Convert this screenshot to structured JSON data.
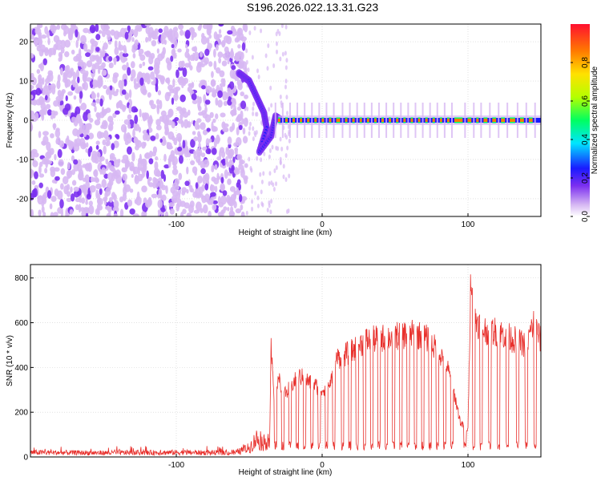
{
  "title": "S196.2026.022.13.31.G23",
  "chart_data": [
    {
      "type": "heatmap",
      "name": "spectrogram",
      "xlabel": "Height of straight line (km)",
      "ylabel": "Frequency (Hz)",
      "xlim": [
        -200,
        150
      ],
      "ylim": [
        -24.5,
        24.5
      ],
      "x_ticks": [
        -100,
        0,
        100
      ],
      "y_ticks": [
        -20,
        -10,
        0,
        10,
        20
      ],
      "grid": true,
      "colorbar": {
        "label": "Normalized spectral amplitude",
        "range": [
          0,
          1
        ],
        "ticks": [
          0.0,
          0.2,
          0.4,
          0.6,
          0.8
        ],
        "colormap": [
          "#ffffff",
          "#d7b8f3",
          "#7b2ff0",
          "#1a1aff",
          "#00e5ff",
          "#00ff60",
          "#b4ff00",
          "#ffe100",
          "#ff7a00",
          "#ff1030"
        ]
      },
      "features": {
        "noise_region_x": [
          -200,
          -52
        ],
        "carrier_frequency_hz": 0,
        "transient_frequency_path": [
          [
            -57,
            12
          ],
          [
            -50,
            10
          ],
          [
            -45,
            6
          ],
          [
            -40,
            2
          ],
          [
            -38,
            -2
          ],
          [
            -43,
            -8
          ],
          [
            -35,
            -4
          ],
          [
            -32,
            1
          ],
          [
            -28,
            0
          ]
        ],
        "carrier_start_x": -30
      }
    },
    {
      "type": "line",
      "name": "snr",
      "xlabel": "Height of straight line (km)",
      "ylabel": "SNR (10 * v/v)",
      "xlim": [
        -200,
        150
      ],
      "ylim": [
        0,
        860
      ],
      "x_ticks": [
        -100,
        0,
        100
      ],
      "y_ticks": [
        0,
        200,
        400,
        600,
        800
      ],
      "grid": true,
      "series": [
        {
          "name": "SNR",
          "color": "#e8312d",
          "x": [
            -200,
            -150,
            -100,
            -60,
            -50,
            -45,
            -40,
            -36,
            -35,
            -33,
            -30,
            -28,
            -25,
            -20,
            -15,
            -10,
            -5,
            0,
            5,
            10,
            20,
            25,
            30,
            40,
            50,
            60,
            70,
            80,
            85,
            90,
            95,
            100,
            102,
            105,
            110,
            120,
            130,
            140,
            145,
            150
          ],
          "values": [
            20,
            18,
            20,
            18,
            40,
            80,
            60,
            90,
            480,
            260,
            360,
            300,
            280,
            330,
            360,
            340,
            320,
            300,
            320,
            440,
            470,
            500,
            520,
            530,
            540,
            550,
            540,
            470,
            420,
            300,
            150,
            120,
            840,
            620,
            570,
            560,
            530,
            500,
            600,
            520
          ]
        }
      ],
      "dropouts_x": [
        -32,
        -27,
        -22,
        -17,
        -12,
        -7,
        -2,
        3,
        8,
        14,
        19,
        24,
        29,
        34,
        39,
        44,
        49,
        54,
        59,
        64,
        69,
        74,
        79,
        84,
        89,
        98,
        104,
        109,
        115,
        121,
        127,
        134,
        140,
        146
      ]
    }
  ]
}
